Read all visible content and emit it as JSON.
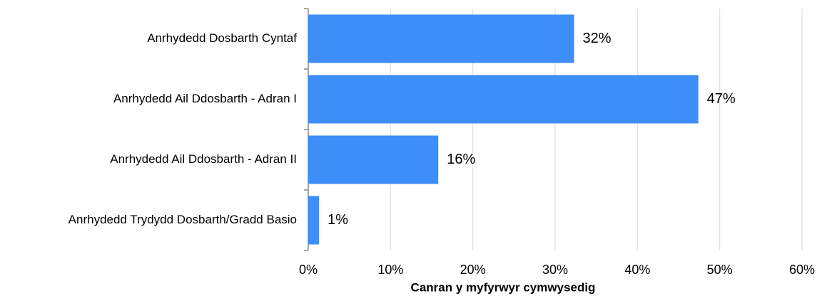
{
  "chart_data": {
    "type": "barh",
    "categories": [
      "Anrhydedd Dosbarth Cyntaf",
      "Anrhydedd Ail Ddosbarth - Adran I",
      "Anrhydedd Ail Ddosbarth - Adran II",
      "Anrhydedd Trydydd Dosbarth/Gradd Basio"
    ],
    "values": [
      32.3,
      47.4,
      15.8,
      1.3
    ],
    "value_labels": [
      "32%",
      "47%",
      "16%",
      "1%"
    ],
    "color": "#3d8ef8",
    "xlabel": "Canran y myfyrwyr cymwysedig",
    "xlim": [
      0,
      60
    ],
    "xticks": [
      {
        "value": 0,
        "label": "0%"
      },
      {
        "value": 10,
        "label": "10%"
      },
      {
        "value": 20,
        "label": "20%"
      },
      {
        "value": 30,
        "label": "30%"
      },
      {
        "value": 40,
        "label": "40%"
      },
      {
        "value": 50,
        "label": "50%"
      },
      {
        "value": 60,
        "label": "60%"
      }
    ],
    "grid": true
  }
}
